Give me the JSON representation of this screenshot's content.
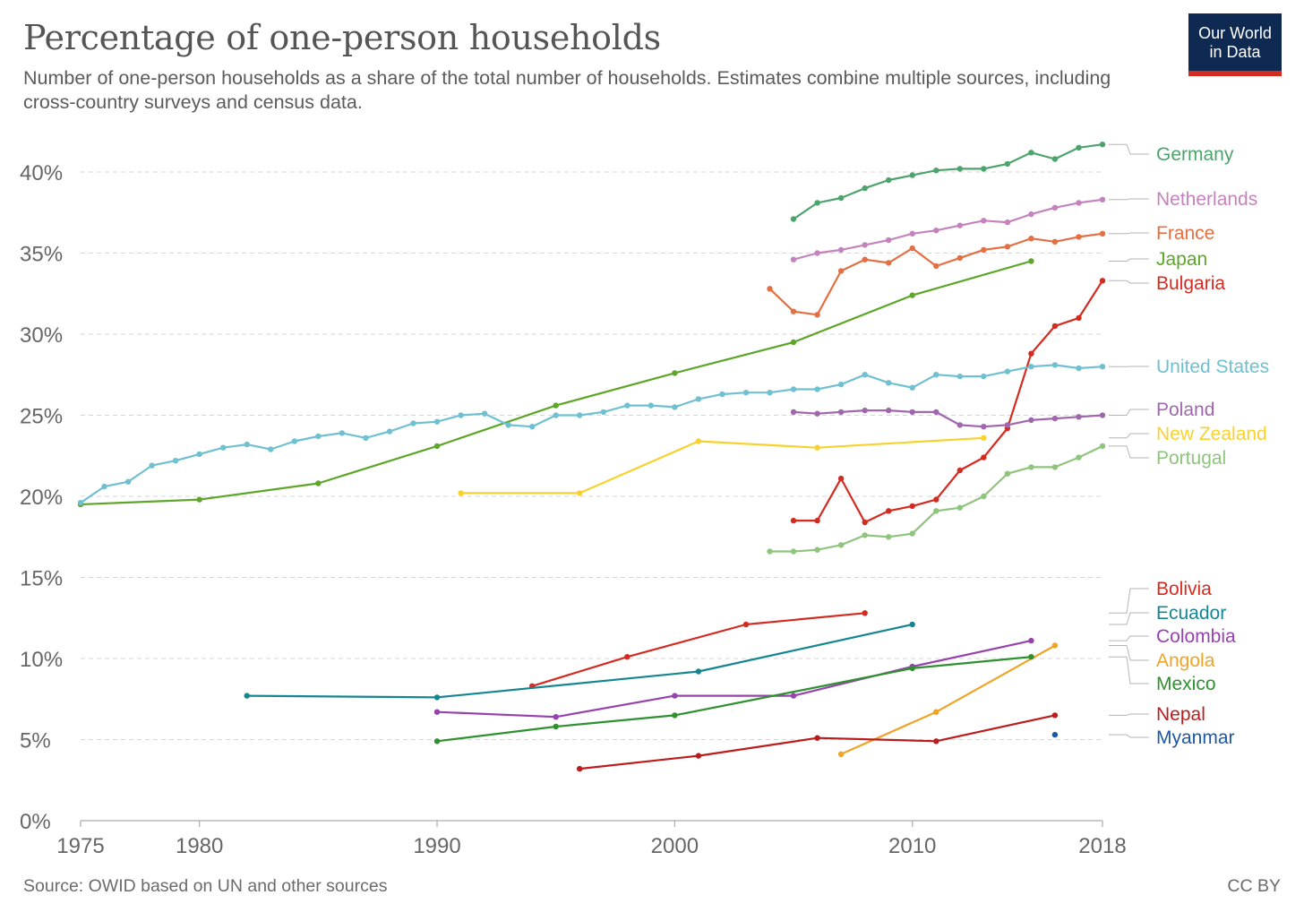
{
  "header": {
    "title": "Percentage of one-person households",
    "subtitle": "Number of one-person households as a share of the total number of households. Estimates combine multiple sources, including cross-country surveys and census data.",
    "logo_line1": "Our World",
    "logo_line2": "in Data"
  },
  "footer": {
    "source": "Source: OWID based on UN and other sources",
    "license": "CC BY"
  },
  "chart_data": {
    "type": "line",
    "title": "Percentage of one-person households",
    "xlabel": "",
    "ylabel": "",
    "xlim": [
      1975,
      2018
    ],
    "ylim": [
      0,
      42
    ],
    "x_ticks": [
      1975,
      1980,
      1990,
      2000,
      2010,
      2018
    ],
    "y_ticks": [
      0,
      5,
      10,
      15,
      20,
      25,
      30,
      35,
      40
    ],
    "y_tick_labels": [
      "0%",
      "5%",
      "10%",
      "15%",
      "20%",
      "25%",
      "30%",
      "35%",
      "40%"
    ],
    "grid": "horizontal-dashed",
    "legend": "right-labels",
    "series": [
      {
        "name": "Germany",
        "color": "#4ca36b",
        "points": [
          [
            2005,
            37.1
          ],
          [
            2006,
            38.1
          ],
          [
            2007,
            38.4
          ],
          [
            2008,
            39.0
          ],
          [
            2009,
            39.5
          ],
          [
            2010,
            39.8
          ],
          [
            2011,
            40.1
          ],
          [
            2012,
            40.2
          ],
          [
            2013,
            40.2
          ],
          [
            2014,
            40.5
          ],
          [
            2015,
            41.2
          ],
          [
            2016,
            40.8
          ],
          [
            2017,
            41.5
          ],
          [
            2018,
            41.7
          ]
        ]
      },
      {
        "name": "Netherlands",
        "color": "#c583be",
        "points": [
          [
            2005,
            34.6
          ],
          [
            2006,
            35.0
          ],
          [
            2007,
            35.2
          ],
          [
            2008,
            35.5
          ],
          [
            2009,
            35.8
          ],
          [
            2010,
            36.2
          ],
          [
            2011,
            36.4
          ],
          [
            2012,
            36.7
          ],
          [
            2013,
            37.0
          ],
          [
            2014,
            36.9
          ],
          [
            2015,
            37.4
          ],
          [
            2016,
            37.8
          ],
          [
            2017,
            38.1
          ],
          [
            2018,
            38.3
          ]
        ]
      },
      {
        "name": "France",
        "color": "#e46f43",
        "points": [
          [
            2004,
            32.8
          ],
          [
            2005,
            31.4
          ],
          [
            2006,
            31.2
          ],
          [
            2007,
            33.9
          ],
          [
            2008,
            34.6
          ],
          [
            2009,
            34.4
          ],
          [
            2010,
            35.3
          ],
          [
            2011,
            34.2
          ],
          [
            2012,
            34.7
          ],
          [
            2013,
            35.2
          ],
          [
            2014,
            35.4
          ],
          [
            2015,
            35.9
          ],
          [
            2016,
            35.7
          ],
          [
            2017,
            36.0
          ],
          [
            2018,
            36.2
          ]
        ]
      },
      {
        "name": "Japan",
        "color": "#5da62a",
        "points": [
          [
            1975,
            19.5
          ],
          [
            1980,
            19.8
          ],
          [
            1985,
            20.8
          ],
          [
            1990,
            23.1
          ],
          [
            1995,
            25.6
          ],
          [
            2000,
            27.6
          ],
          [
            2005,
            29.5
          ],
          [
            2010,
            32.4
          ],
          [
            2015,
            34.5
          ]
        ]
      },
      {
        "name": "Bulgaria",
        "color": "#d42b21",
        "points": [
          [
            2005,
            18.5
          ],
          [
            2006,
            18.5
          ],
          [
            2007,
            21.1
          ],
          [
            2008,
            18.4
          ],
          [
            2009,
            19.1
          ],
          [
            2010,
            19.4
          ],
          [
            2011,
            19.8
          ],
          [
            2012,
            21.6
          ],
          [
            2013,
            22.4
          ],
          [
            2014,
            24.2
          ],
          [
            2015,
            28.8
          ],
          [
            2016,
            30.5
          ],
          [
            2017,
            31.0
          ],
          [
            2018,
            33.3
          ]
        ]
      },
      {
        "name": "United States",
        "color": "#6fc0d0",
        "points": [
          [
            1975,
            19.6
          ],
          [
            1976,
            20.6
          ],
          [
            1977,
            20.9
          ],
          [
            1978,
            21.9
          ],
          [
            1979,
            22.2
          ],
          [
            1980,
            22.6
          ],
          [
            1981,
            23.0
          ],
          [
            1982,
            23.2
          ],
          [
            1983,
            22.9
          ],
          [
            1984,
            23.4
          ],
          [
            1985,
            23.7
          ],
          [
            1986,
            23.9
          ],
          [
            1987,
            23.6
          ],
          [
            1988,
            24.0
          ],
          [
            1989,
            24.5
          ],
          [
            1990,
            24.6
          ],
          [
            1991,
            25.0
          ],
          [
            1992,
            25.1
          ],
          [
            1993,
            24.4
          ],
          [
            1994,
            24.3
          ],
          [
            1995,
            25.0
          ],
          [
            1996,
            25.0
          ],
          [
            1997,
            25.2
          ],
          [
            1998,
            25.6
          ],
          [
            1999,
            25.6
          ],
          [
            2000,
            25.5
          ],
          [
            2001,
            26.0
          ],
          [
            2002,
            26.3
          ],
          [
            2003,
            26.4
          ],
          [
            2004,
            26.4
          ],
          [
            2005,
            26.6
          ],
          [
            2006,
            26.6
          ],
          [
            2007,
            26.9
          ],
          [
            2008,
            27.5
          ],
          [
            2009,
            27.0
          ],
          [
            2010,
            26.7
          ],
          [
            2011,
            27.5
          ],
          [
            2012,
            27.4
          ],
          [
            2013,
            27.4
          ],
          [
            2014,
            27.7
          ],
          [
            2015,
            28.0
          ],
          [
            2016,
            28.1
          ],
          [
            2017,
            27.9
          ],
          [
            2018,
            28.0
          ]
        ]
      },
      {
        "name": "Poland",
        "color": "#a067ad",
        "points": [
          [
            2005,
            25.2
          ],
          [
            2006,
            25.1
          ],
          [
            2007,
            25.2
          ],
          [
            2008,
            25.3
          ],
          [
            2009,
            25.3
          ],
          [
            2010,
            25.2
          ],
          [
            2011,
            25.2
          ],
          [
            2012,
            24.4
          ],
          [
            2013,
            24.3
          ],
          [
            2014,
            24.4
          ],
          [
            2015,
            24.7
          ],
          [
            2016,
            24.8
          ],
          [
            2017,
            24.9
          ],
          [
            2018,
            25.0
          ]
        ]
      },
      {
        "name": "New Zealand",
        "color": "#f7d22f",
        "points": [
          [
            1991,
            20.2
          ],
          [
            1996,
            20.2
          ],
          [
            2001,
            23.4
          ],
          [
            2006,
            23.0
          ],
          [
            2013,
            23.6
          ]
        ]
      },
      {
        "name": "Portugal",
        "color": "#8fc47c",
        "points": [
          [
            2004,
            16.6
          ],
          [
            2005,
            16.6
          ],
          [
            2006,
            16.7
          ],
          [
            2007,
            17.0
          ],
          [
            2008,
            17.6
          ],
          [
            2009,
            17.5
          ],
          [
            2010,
            17.7
          ],
          [
            2011,
            19.1
          ],
          [
            2012,
            19.3
          ],
          [
            2013,
            20.0
          ],
          [
            2014,
            21.4
          ],
          [
            2015,
            21.8
          ],
          [
            2016,
            21.8
          ],
          [
            2017,
            22.4
          ],
          [
            2018,
            23.1
          ]
        ]
      },
      {
        "name": "Bolivia",
        "color": "#d42b21",
        "points": [
          [
            1994,
            8.3
          ],
          [
            1998,
            10.1
          ],
          [
            2003,
            12.1
          ],
          [
            2008,
            12.8
          ]
        ]
      },
      {
        "name": "Ecuador",
        "color": "#158691",
        "points": [
          [
            1982,
            7.7
          ],
          [
            1990,
            7.6
          ],
          [
            2001,
            9.2
          ],
          [
            2010,
            12.1
          ]
        ]
      },
      {
        "name": "Colombia",
        "color": "#9643ad",
        "points": [
          [
            1990,
            6.7
          ],
          [
            1995,
            6.4
          ],
          [
            2000,
            7.7
          ],
          [
            2005,
            7.7
          ],
          [
            2010,
            9.5
          ],
          [
            2015,
            11.1
          ]
        ]
      },
      {
        "name": "Angola",
        "color": "#eea428",
        "points": [
          [
            2007,
            4.1
          ],
          [
            2011,
            6.7
          ],
          [
            2016,
            10.8
          ]
        ]
      },
      {
        "name": "Mexico",
        "color": "#2e902e",
        "points": [
          [
            1990,
            4.9
          ],
          [
            1995,
            5.8
          ],
          [
            2000,
            6.5
          ],
          [
            2010,
            9.4
          ],
          [
            2015,
            10.1
          ]
        ]
      },
      {
        "name": "Nepal",
        "color": "#bb1c1c",
        "points": [
          [
            1996,
            3.2
          ],
          [
            2001,
            4.0
          ],
          [
            2006,
            5.1
          ],
          [
            2011,
            4.9
          ],
          [
            2016,
            6.5
          ]
        ]
      },
      {
        "name": "Myanmar",
        "color": "#1d58a4",
        "points": [
          [
            2016,
            5.3
          ]
        ]
      }
    ]
  }
}
